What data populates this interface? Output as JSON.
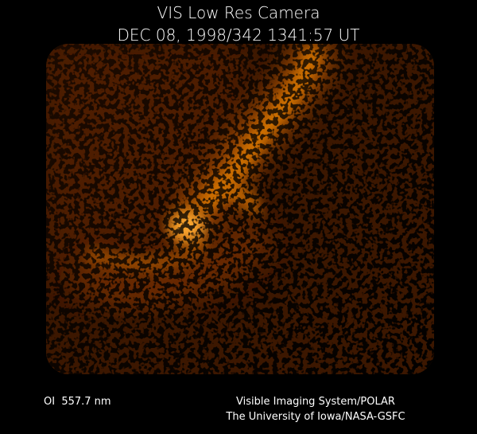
{
  "header": {
    "title": "VIS Low Res Camera",
    "timestamp": "DEC 08, 1998/342 1341:57 UT"
  },
  "footer": {
    "wavelength": "OI  557.7 nm",
    "credit_line_1": "Visible Imaging System/POLAR",
    "credit_line_2": "The University of Iowa/NASA-GSFC"
  }
}
